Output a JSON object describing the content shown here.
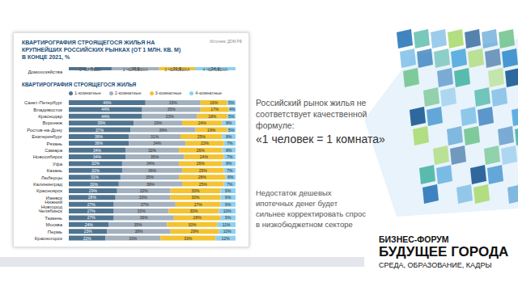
{
  "chart_data": [
    {
      "type": "bar",
      "title": "КВАРТИРОГРАФИЯ СТРОЯЩЕГОСЯ ЖИЛЬЯ НА КРУПНЕЙШИХ РОССИЙСКИХ РЫНКАХ (ОТ 1 МЛН. КВ. М) В КОНЦЕ 2021, %",
      "subtitle": "Источник: ДОМ.РФ",
      "orientation": "horizontal",
      "stacked": true,
      "data_labels": true,
      "grid": false,
      "tick_labels": "y",
      "xlim": [
        0,
        100
      ],
      "categories": [
        "Домохозяйства"
      ],
      "series": [
        {
          "name": "1 ЧЕЛОВЕК",
          "color": "#4f7490",
          "values": [
            25.7
          ],
          "value_labels": [
            "25,7"
          ]
        },
        {
          "name": "2 ЧЕЛОВЕКА",
          "color": "#a3b1bf",
          "values": [
            28.5
          ],
          "value_labels": [
            "28,5"
          ]
        },
        {
          "name": "3 ЧЕЛОВЕКА",
          "color": "#f3c331",
          "values": [
            21.5
          ],
          "value_labels": [
            "21,5"
          ]
        },
        {
          "name": "4 ЧЕЛОВЕКА",
          "color": "#8fd0ef",
          "values": [
            24.3
          ],
          "value_labels": [
            "24,3"
          ]
        }
      ]
    },
    {
      "type": "bar",
      "title": "КВАРТИРОГРАФИЯ СТРОЯЩЕГОСЯ ЖИЛЬЯ",
      "orientation": "horizontal",
      "stacked": true,
      "data_labels": true,
      "grid": false,
      "legend": "top",
      "tick_labels": "y",
      "xlim": [
        0,
        100
      ],
      "categories": [
        "Санкт-Петербург",
        "Владивосток",
        "Краснодар",
        "Воронеж",
        "Ростов-на-Дону",
        "Екатеринбург",
        "Рязань",
        "Самара",
        "Новосибирск",
        "Уфа",
        "Казань",
        "Люберцы",
        "Калининград",
        "Красноярск",
        "Ижевск",
        "Нижний Новгород",
        "Челябинск",
        "Тюмень",
        "Москва",
        "Пермь",
        "Красногорск"
      ],
      "series": [
        {
          "name": "1-комнатные",
          "color": "#4f7490",
          "values": [
            46,
            44,
            44,
            39,
            37,
            36,
            36,
            34,
            34,
            32,
            32,
            31,
            30,
            29,
            28,
            27,
            27,
            27,
            24,
            23,
            22
          ],
          "value_labels": [
            "46%",
            "44%",
            "44%",
            "39%",
            "37%",
            "36%",
            "36%",
            "34%",
            "34%",
            "32%",
            "32%",
            "31%",
            "30%",
            "29%",
            "28%",
            "27%",
            "27%",
            "27%",
            "24%",
            "23%",
            "22%"
          ]
        },
        {
          "name": "2-комнатные",
          "color": "#a3b1bf",
          "values": [
            33,
            35,
            33,
            29,
            39,
            31,
            34,
            32,
            35,
            34,
            36,
            35,
            38,
            32,
            33,
            37,
            33,
            36,
            35,
            38,
            33
          ],
          "value_labels": [
            "33%",
            "35%",
            "33%",
            "29%",
            "39%",
            "31%",
            "34%",
            "32%",
            "35%",
            "34%",
            "36%",
            "35%",
            "38%",
            "32%",
            "33%",
            "37%",
            "33%",
            "36%",
            "35%",
            "38%",
            "33%"
          ]
        },
        {
          "name": "3-комнатные",
          "color": "#f3c331",
          "values": [
            16,
            17,
            18,
            24,
            19,
            25,
            23,
            26,
            24,
            26,
            25,
            28,
            25,
            30,
            30,
            27,
            30,
            28,
            30,
            29,
            33
          ],
          "value_labels": [
            "16%",
            "17%",
            "18%",
            "24%",
            "19%",
            "25%",
            "23%",
            "26%",
            "24%",
            "26%",
            "25%",
            "28%",
            "25%",
            "30%",
            "30%",
            "27%",
            "30%",
            "28%",
            "30%",
            "29%",
            "33%"
          ]
        },
        {
          "name": "4-комнатные",
          "color": "#8fd0ef",
          "values": [
            5,
            4,
            5,
            8,
            5,
            8,
            7,
            8,
            7,
            8,
            7,
            6,
            7,
            9,
            9,
            9,
            10,
            9,
            11,
            10,
            12
          ],
          "value_labels": [
            "5%",
            "4%",
            "5%",
            "8%",
            "5%",
            "8%",
            "7%",
            "8%",
            "7%",
            "8%",
            "7%",
            "6%",
            "7%",
            "9%",
            "9%",
            "9%",
            "10%",
            "9%",
            "11%",
            "10%",
            "12%"
          ]
        }
      ]
    }
  ],
  "slide": {
    "heading": "Российский рынок жилья не соответствует качественной формуле:",
    "formula": "«1 человек = 1 комната»",
    "note": "Недостаток дешевых ипотечных денег будет сильнее корректировать спрос в низкобюджетном секторе",
    "event": {
      "line1": "БИЗНЕС-ФОРУМ",
      "line2": "БУДУЩЕЕ ГОРОДА",
      "line3": "СРЕДА, ОБРАЗОВАНИЕ, КАДРЫ"
    }
  }
}
